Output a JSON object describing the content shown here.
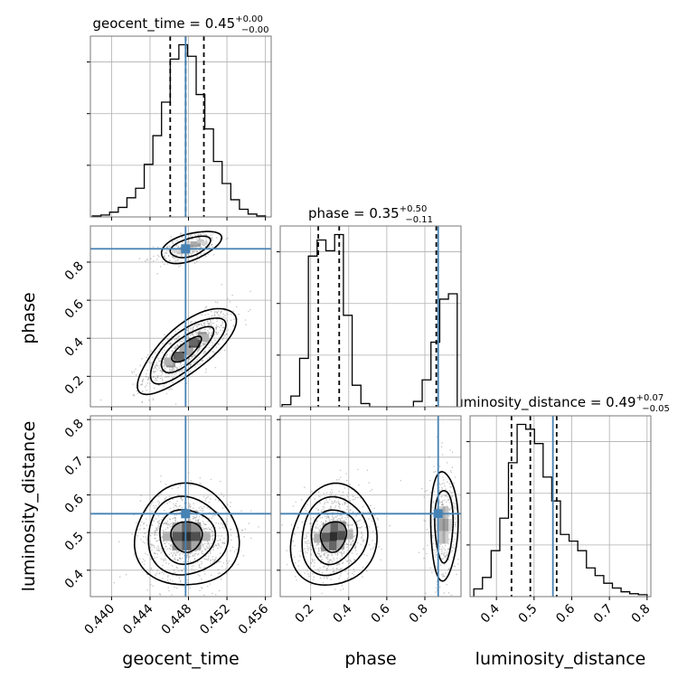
{
  "chart_data": {
    "type": "corner",
    "parameters": [
      {
        "name": "geocent_time",
        "range": [
          0.4378,
          0.4566
        ],
        "ticks": [
          0.44,
          0.444,
          0.448,
          0.452,
          0.456
        ],
        "tick_labels": [
          "0.440",
          "0.444",
          "0.448",
          "0.452",
          "0.456"
        ],
        "truth": 0.4477
      },
      {
        "name": "phase",
        "range": [
          0.04,
          0.99
        ],
        "ticks": [
          0.2,
          0.4,
          0.6,
          0.8
        ],
        "tick_labels": [
          "0.2",
          "0.4",
          "0.6",
          "0.8"
        ],
        "truth": 0.87
      },
      {
        "name": "luminosity_distance",
        "range": [
          0.33,
          0.81
        ],
        "ticks": [
          0.4,
          0.5,
          0.6,
          0.7,
          0.8
        ],
        "tick_labels": [
          "0.4",
          "0.5",
          "0.6",
          "0.7",
          "0.8"
        ],
        "truth": 0.55
      }
    ],
    "titles": [
      {
        "param": "geocent_time",
        "prefix": "geocent_time = ",
        "value": "0.45",
        "plus": "+0.00",
        "minus": "−0.00"
      },
      {
        "param": "phase",
        "prefix": "phase = ",
        "value": "0.35",
        "plus": "+0.50",
        "minus": "−0.11"
      },
      {
        "param": "luminosity_distance",
        "prefix": "luminosity_distance = ",
        "value": "0.49",
        "plus": "+0.07",
        "minus": "−0.05"
      }
    ],
    "axis_labels": {
      "x": [
        "geocent_time",
        "phase",
        "luminosity_distance"
      ],
      "y": [
        "phase",
        "luminosity_distance"
      ]
    },
    "quantiles": {
      "geocent_time": [
        0.4461,
        0.4477,
        0.4496
      ],
      "phase": [
        0.24,
        0.35,
        0.86
      ],
      "luminosity_distance": [
        0.44,
        0.49,
        0.56
      ]
    },
    "histograms": {
      "geocent_time": {
        "edges": [
          0.438,
          0.4389,
          0.4398,
          0.4407,
          0.4416,
          0.4425,
          0.4434,
          0.4443,
          0.4452,
          0.4461,
          0.447,
          0.4479,
          0.4488,
          0.4497,
          0.4506,
          0.4515,
          0.4524,
          0.4533,
          0.4542,
          0.4551,
          0.456
        ],
        "counts": [
          1,
          2,
          5,
          10,
          20,
          30,
          55,
          85,
          120,
          165,
          180,
          168,
          128,
          92,
          58,
          35,
          18,
          8,
          3,
          1
        ]
      },
      "phase": {
        "edges": [
          0.05,
          0.096,
          0.142,
          0.188,
          0.234,
          0.28,
          0.326,
          0.372,
          0.418,
          0.464,
          0.51,
          0.556,
          0.602,
          0.648,
          0.694,
          0.74,
          0.786,
          0.832,
          0.878,
          0.924,
          0.97
        ],
        "counts": [
          2,
          10,
          45,
          140,
          155,
          145,
          160,
          85,
          20,
          3,
          0,
          0,
          0,
          0,
          0,
          5,
          25,
          60,
          100,
          105
        ]
      },
      "luminosity_distance": {
        "edges": [
          0.34,
          0.363,
          0.386,
          0.409,
          0.432,
          0.455,
          0.478,
          0.501,
          0.524,
          0.547,
          0.57,
          0.593,
          0.616,
          0.639,
          0.662,
          0.685,
          0.708,
          0.731,
          0.754,
          0.777,
          0.8
        ],
        "counts": [
          8,
          20,
          48,
          82,
          140,
          180,
          175,
          160,
          125,
          100,
          65,
          58,
          48,
          30,
          22,
          14,
          9,
          5,
          3,
          2
        ]
      }
    },
    "grid": true
  }
}
